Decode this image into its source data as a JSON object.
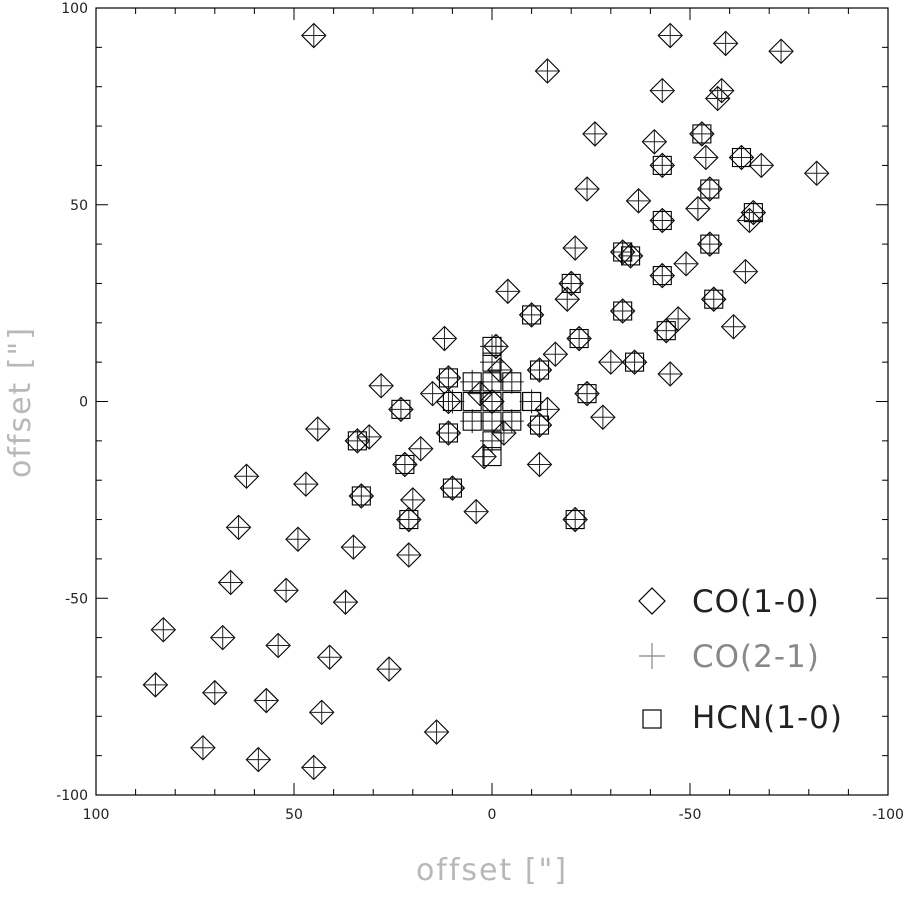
{
  "chart_data": {
    "type": "scatter",
    "xlabel": "offset [\"]",
    "ylabel": "offset [\"]",
    "xlim": [
      100,
      -100
    ],
    "ylim": [
      -100,
      100
    ],
    "xticks": [
      "100",
      "50",
      "0",
      "-50",
      "-100"
    ],
    "yticks": [
      "-100",
      "-50",
      "0",
      "50",
      "100"
    ],
    "legend_position": "bottom-right",
    "legend": [
      {
        "marker": "diamond",
        "label": "CO(1-0)"
      },
      {
        "marker": "plus",
        "label": "CO(2-1)"
      },
      {
        "marker": "square",
        "label": "HCN(1-0)"
      }
    ],
    "series": [
      {
        "name": "CO(1-0)",
        "marker": "diamond",
        "points": [
          [
            45,
            93
          ],
          [
            -45,
            93
          ],
          [
            -14,
            84
          ],
          [
            -59,
            91
          ],
          [
            -73,
            89
          ],
          [
            -43,
            79
          ],
          [
            -58,
            79
          ],
          [
            -57,
            77
          ],
          [
            -26,
            68
          ],
          [
            -41,
            66
          ],
          [
            -54,
            62
          ],
          [
            -68,
            60
          ],
          [
            -82,
            58
          ],
          [
            -24,
            54
          ],
          [
            -37,
            51
          ],
          [
            -52,
            49
          ],
          [
            -65,
            46
          ],
          [
            -21,
            39
          ],
          [
            -49,
            35
          ],
          [
            -64,
            33
          ],
          [
            -4,
            28
          ],
          [
            -19,
            26
          ],
          [
            -47,
            21
          ],
          [
            -61,
            19
          ],
          [
            12,
            16
          ],
          [
            -1,
            14
          ],
          [
            -16,
            12
          ],
          [
            -30,
            10
          ],
          [
            28,
            4
          ],
          [
            15,
            2
          ],
          [
            0,
            0
          ],
          [
            -28,
            -4
          ],
          [
            44,
            -7
          ],
          [
            31,
            -9
          ],
          [
            -12,
            -16
          ],
          [
            18,
            -12
          ],
          [
            -14,
            -2
          ],
          [
            2,
            -14
          ],
          [
            62,
            -19
          ],
          [
            47,
            -21
          ],
          [
            20,
            -25
          ],
          [
            4,
            -28
          ],
          [
            64,
            -32
          ],
          [
            49,
            -35
          ],
          [
            35,
            -37
          ],
          [
            21,
            -39
          ],
          [
            66,
            -46
          ],
          [
            52,
            -48
          ],
          [
            37,
            -51
          ],
          [
            83,
            -58
          ],
          [
            68,
            -60
          ],
          [
            54,
            -62
          ],
          [
            41,
            -65
          ],
          [
            26,
            -68
          ],
          [
            85,
            -72
          ],
          [
            70,
            -74
          ],
          [
            57,
            -76
          ],
          [
            43,
            -79
          ],
          [
            14,
            -84
          ],
          [
            73,
            -88
          ],
          [
            59,
            -91
          ],
          [
            45,
            -93
          ],
          [
            -33,
            38
          ],
          [
            -35,
            37
          ],
          [
            -33,
            23
          ],
          [
            -45,
            7
          ],
          [
            -20,
            30
          ],
          [
            -44,
            18
          ],
          [
            -36,
            10
          ],
          [
            -22,
            16
          ],
          [
            -24,
            2
          ],
          [
            -10,
            22
          ],
          [
            -12,
            8
          ],
          [
            -43,
            60
          ],
          [
            -53,
            68
          ],
          [
            -55,
            54
          ],
          [
            -63,
            62
          ],
          [
            -66,
            48
          ],
          [
            -55,
            40
          ],
          [
            -56,
            26
          ],
          [
            -43,
            46
          ],
          [
            -43,
            32
          ],
          [
            34,
            -10
          ],
          [
            33,
            -24
          ],
          [
            23,
            -2
          ],
          [
            22,
            -16
          ],
          [
            21,
            -30
          ],
          [
            11,
            0
          ],
          [
            10,
            -22
          ],
          [
            11,
            6
          ],
          [
            11,
            -8
          ],
          [
            -12,
            -6
          ],
          [
            -21,
            -30
          ],
          [
            -2,
            8
          ],
          [
            3,
            2
          ],
          [
            -3,
            -8
          ]
        ]
      },
      {
        "name": "CO(2-1)",
        "marker": "plus",
        "points": [
          [
            45,
            93
          ],
          [
            -45,
            93
          ],
          [
            -14,
            84
          ],
          [
            -59,
            91
          ],
          [
            -73,
            89
          ],
          [
            -43,
            79
          ],
          [
            -58,
            79
          ],
          [
            -57,
            77
          ],
          [
            -26,
            68
          ],
          [
            -41,
            66
          ],
          [
            -54,
            62
          ],
          [
            -68,
            60
          ],
          [
            -82,
            58
          ],
          [
            -24,
            54
          ],
          [
            -37,
            51
          ],
          [
            -52,
            49
          ],
          [
            -65,
            46
          ],
          [
            -21,
            39
          ],
          [
            -49,
            35
          ],
          [
            -64,
            33
          ],
          [
            -4,
            28
          ],
          [
            -19,
            26
          ],
          [
            -47,
            21
          ],
          [
            -61,
            19
          ],
          [
            12,
            16
          ],
          [
            -1,
            14
          ],
          [
            -16,
            12
          ],
          [
            -30,
            10
          ],
          [
            28,
            4
          ],
          [
            15,
            2
          ],
          [
            0,
            0
          ],
          [
            -28,
            -4
          ],
          [
            44,
            -7
          ],
          [
            31,
            -9
          ],
          [
            -12,
            -16
          ],
          [
            18,
            -12
          ],
          [
            -14,
            -2
          ],
          [
            2,
            -14
          ],
          [
            62,
            -19
          ],
          [
            47,
            -21
          ],
          [
            20,
            -25
          ],
          [
            4,
            -28
          ],
          [
            64,
            -32
          ],
          [
            49,
            -35
          ],
          [
            35,
            -37
          ],
          [
            21,
            -39
          ],
          [
            66,
            -46
          ],
          [
            52,
            -48
          ],
          [
            37,
            -51
          ],
          [
            83,
            -58
          ],
          [
            68,
            -60
          ],
          [
            54,
            -62
          ],
          [
            41,
            -65
          ],
          [
            26,
            -68
          ],
          [
            85,
            -72
          ],
          [
            70,
            -74
          ],
          [
            57,
            -76
          ],
          [
            43,
            -79
          ],
          [
            14,
            -84
          ],
          [
            73,
            -88
          ],
          [
            59,
            -91
          ],
          [
            45,
            -93
          ],
          [
            -33,
            38
          ],
          [
            -35,
            37
          ],
          [
            -33,
            23
          ],
          [
            -45,
            7
          ],
          [
            -20,
            30
          ],
          [
            -44,
            18
          ],
          [
            -36,
            10
          ],
          [
            -22,
            16
          ],
          [
            -24,
            2
          ],
          [
            -10,
            22
          ],
          [
            -12,
            8
          ],
          [
            -43,
            60
          ],
          [
            -53,
            68
          ],
          [
            -55,
            54
          ],
          [
            -63,
            62
          ],
          [
            -66,
            48
          ],
          [
            -55,
            40
          ],
          [
            -56,
            26
          ],
          [
            -43,
            46
          ],
          [
            -43,
            32
          ],
          [
            34,
            -10
          ],
          [
            33,
            -24
          ],
          [
            23,
            -2
          ],
          [
            22,
            -16
          ],
          [
            21,
            -30
          ],
          [
            11,
            0
          ],
          [
            10,
            -22
          ],
          [
            11,
            6
          ],
          [
            11,
            -8
          ],
          [
            -12,
            -6
          ],
          [
            -21,
            -30
          ],
          [
            -2,
            8
          ],
          [
            3,
            2
          ],
          [
            -3,
            -8
          ],
          [
            0,
            14
          ],
          [
            0,
            5
          ],
          [
            0,
            -10
          ],
          [
            -5,
            5
          ],
          [
            -5,
            -5
          ],
          [
            5,
            5
          ],
          [
            5,
            -5
          ],
          [
            -10,
            0
          ],
          [
            10,
            0
          ],
          [
            0,
            10
          ],
          [
            0,
            -5
          ]
        ]
      },
      {
        "name": "HCN(1-0)",
        "marker": "square",
        "points": [
          [
            0,
            14
          ],
          [
            0,
            10
          ],
          [
            -5,
            5
          ],
          [
            0,
            5
          ],
          [
            5,
            5
          ],
          [
            -10,
            0
          ],
          [
            -5,
            0
          ],
          [
            0,
            0
          ],
          [
            5,
            0
          ],
          [
            10,
            0
          ],
          [
            -5,
            -5
          ],
          [
            0,
            -5
          ],
          [
            5,
            -5
          ],
          [
            0,
            -10
          ],
          [
            0,
            -14
          ],
          [
            -10,
            0
          ],
          [
            11,
            6
          ],
          [
            11,
            -8
          ],
          [
            10,
            -22
          ],
          [
            22,
            -16
          ],
          [
            23,
            -2
          ],
          [
            34,
            -10
          ],
          [
            33,
            -24
          ],
          [
            21,
            -30
          ],
          [
            -12,
            -6
          ],
          [
            -12,
            8
          ],
          [
            -10,
            22
          ],
          [
            -22,
            16
          ],
          [
            -24,
            2
          ],
          [
            -21,
            -30
          ],
          [
            -20,
            30
          ],
          [
            -33,
            38
          ],
          [
            -33,
            23
          ],
          [
            -35,
            37
          ],
          [
            -36,
            10
          ],
          [
            -43,
            46
          ],
          [
            -43,
            32
          ],
          [
            -44,
            18
          ],
          [
            -43,
            60
          ],
          [
            -53,
            68
          ],
          [
            -55,
            54
          ],
          [
            -55,
            40
          ],
          [
            -56,
            26
          ],
          [
            -63,
            62
          ],
          [
            -66,
            48
          ]
        ]
      }
    ]
  }
}
